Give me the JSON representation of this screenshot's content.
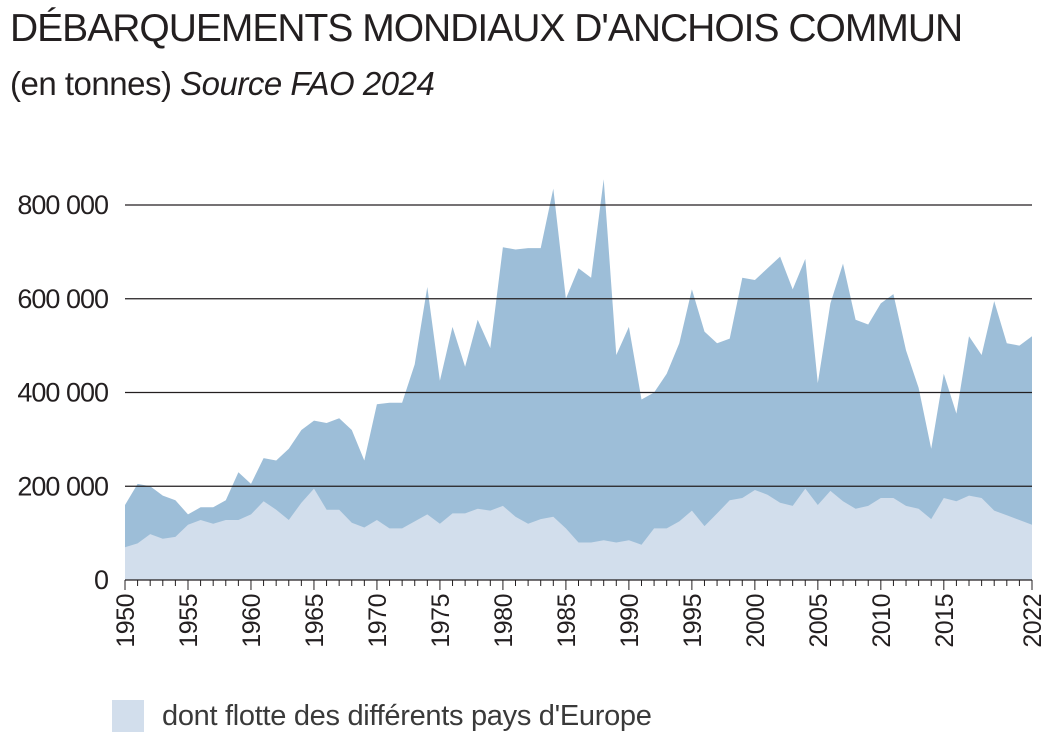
{
  "title": "DÉBARQUEMENTS MONDIAUX D'ANCHOIS COMMUN",
  "subtitle": "(en tonnes)",
  "source": "Source FAO 2024",
  "colors": {
    "total": "#9dbed8",
    "europe": "#d2deec",
    "grid": "#231f20"
  },
  "legend": {
    "label": "dont flotte des différents pays d'Europe"
  },
  "chart_data": {
    "type": "area",
    "ylim": [
      0,
      800000
    ],
    "yticks": [
      0,
      200000,
      400000,
      600000,
      800000
    ],
    "ytick_labels": [
      "0",
      "200 000",
      "400 000",
      "600 000",
      "800 000"
    ],
    "xlim": [
      1950,
      2022
    ],
    "xticks": [
      1950,
      1955,
      1960,
      1965,
      1970,
      1975,
      1980,
      1985,
      1990,
      1995,
      2000,
      2005,
      2010,
      2015,
      2022
    ],
    "x": [
      1950,
      1951,
      1952,
      1953,
      1954,
      1955,
      1956,
      1957,
      1958,
      1959,
      1960,
      1961,
      1962,
      1963,
      1964,
      1965,
      1966,
      1967,
      1968,
      1969,
      1970,
      1971,
      1972,
      1973,
      1974,
      1975,
      1976,
      1977,
      1978,
      1979,
      1980,
      1981,
      1982,
      1983,
      1984,
      1985,
      1986,
      1987,
      1988,
      1989,
      1990,
      1991,
      1992,
      1993,
      1994,
      1995,
      1996,
      1997,
      1998,
      1999,
      2000,
      2001,
      2002,
      2003,
      2004,
      2005,
      2006,
      2007,
      2008,
      2009,
      2010,
      2011,
      2012,
      2013,
      2014,
      2015,
      2016,
      2017,
      2018,
      2019,
      2020,
      2021,
      2022
    ],
    "series": [
      {
        "values": [
          160000,
          205000,
          200000,
          180000,
          170000,
          140000,
          155000,
          155000,
          170000,
          230000,
          205000,
          260000,
          255000,
          280000,
          320000,
          340000,
          335000,
          345000,
          320000,
          255000,
          375000,
          378000,
          378000,
          460000,
          625000,
          425000,
          540000,
          455000,
          555000,
          495000,
          710000,
          705000,
          708000,
          708000,
          835000,
          600000,
          665000,
          645000,
          855000,
          480000,
          540000,
          385000,
          400000,
          440000,
          505000,
          620000,
          530000,
          505000,
          515000,
          645000,
          640000,
          665000,
          690000,
          620000,
          685000,
          420000,
          590000,
          675000,
          555000,
          545000,
          590000,
          610000,
          490000,
          410000,
          280000,
          440000,
          355000,
          520000,
          480000,
          595000,
          505000,
          500000,
          520000
        ]
      },
      {
        "name": "dont flotte des différents pays d'Europe",
        "values": [
          70000,
          78000,
          98000,
          88000,
          92000,
          118000,
          128000,
          120000,
          128000,
          128000,
          140000,
          168000,
          150000,
          128000,
          165000,
          195000,
          150000,
          150000,
          122000,
          112000,
          128000,
          110000,
          110000,
          125000,
          140000,
          120000,
          142000,
          142000,
          152000,
          148000,
          158000,
          135000,
          120000,
          130000,
          135000,
          110000,
          80000,
          80000,
          85000,
          80000,
          85000,
          75000,
          110000,
          110000,
          125000,
          148000,
          115000,
          142000,
          170000,
          175000,
          192000,
          182000,
          165000,
          158000,
          195000,
          160000,
          190000,
          168000,
          152000,
          158000,
          175000,
          175000,
          158000,
          152000,
          130000,
          175000,
          168000,
          180000,
          175000,
          148000,
          138000,
          128000,
          118000
        ]
      }
    ]
  }
}
